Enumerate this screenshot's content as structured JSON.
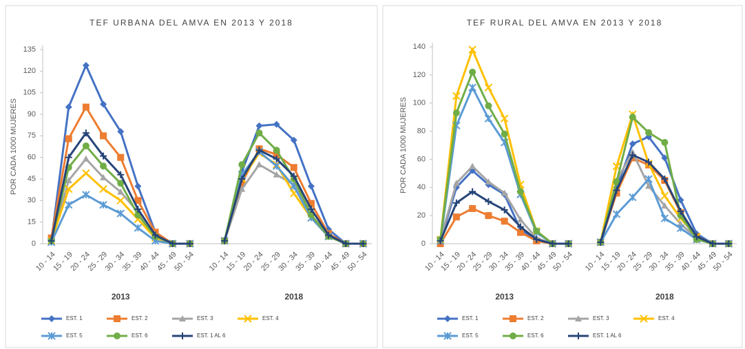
{
  "chart_data": [
    {
      "type": "line",
      "title": "TEF URBANA DEL AMVA EN 2013 Y 2018",
      "y_label": "POR CADA 1000 MUJERES",
      "categories": [
        "10 - 14",
        "15 - 19",
        "20 - 24",
        "25 - 29",
        "30 - 34",
        "35 - 39",
        "40 - 44",
        "45 - 49",
        "50 - 54",
        null,
        "10 - 14",
        "15 - 19",
        "20 - 24",
        "25 - 29",
        "30 - 34",
        "35 - 39",
        "40 - 44",
        "45 - 49",
        "50 - 54"
      ],
      "group_labels": [
        "2013",
        "2018"
      ],
      "ylim": [
        0,
        135
      ],
      "yticks": [
        0,
        15,
        30,
        45,
        60,
        75,
        90,
        105,
        120,
        135
      ],
      "series": [
        {
          "name": "EST. 1",
          "color": "#4472c4",
          "marker": "diamond",
          "values": [
            2,
            95,
            124,
            97,
            78,
            40,
            8,
            0,
            0,
            null,
            2,
            50,
            82,
            83,
            72,
            40,
            10,
            0,
            0
          ]
        },
        {
          "name": "EST. 2",
          "color": "#ed7d31",
          "marker": "square",
          "values": [
            4,
            73,
            95,
            75,
            60,
            30,
            8,
            0,
            0,
            null,
            2,
            42,
            66,
            62,
            53,
            28,
            7,
            0,
            0
          ]
        },
        {
          "name": "EST. 3",
          "color": "#a5a5a5",
          "marker": "triangle",
          "values": [
            2,
            44,
            59,
            46,
            36,
            22,
            5,
            0,
            0,
            null,
            2,
            38,
            55,
            48,
            41,
            20,
            5,
            0,
            0
          ]
        },
        {
          "name": "EST. 4",
          "color": "#ffc000",
          "marker": "x",
          "values": [
            2,
            38,
            49,
            38,
            30,
            17,
            4,
            0,
            0,
            null,
            2,
            45,
            63,
            55,
            35,
            18,
            5,
            0,
            0
          ]
        },
        {
          "name": "EST. 5",
          "color": "#5b9bd5",
          "marker": "star",
          "values": [
            1,
            27,
            34,
            27,
            21,
            11,
            2,
            0,
            0,
            null,
            2,
            48,
            64,
            54,
            40,
            18,
            5,
            0,
            0
          ]
        },
        {
          "name": "EST. 6",
          "color": "#70ad47",
          "marker": "circle",
          "values": [
            2,
            53,
            68,
            54,
            42,
            20,
            5,
            0,
            0,
            null,
            2,
            55,
            77,
            65,
            45,
            20,
            5,
            0,
            0
          ]
        },
        {
          "name": "EST. 1 AL 6",
          "color": "#264478",
          "marker": "plus",
          "values": [
            2,
            60,
            77,
            61,
            48,
            24,
            6,
            0,
            0,
            null,
            2,
            45,
            65,
            59,
            47,
            24,
            6,
            0,
            0
          ]
        }
      ]
    },
    {
      "type": "line",
      "title": "TEF RURAL DEL AMVA EN 2013 Y 2018",
      "y_label": "POR CADA 1000 MUJERES",
      "categories": [
        "10 - 14",
        "15 - 19",
        "20 - 24",
        "25 - 29",
        "30 - 34",
        "35 - 39",
        "40 - 44",
        "45 - 49",
        "50 - 54",
        null,
        "10 - 14",
        "15 - 19",
        "20 - 24",
        "25 - 29",
        "30 - 34",
        "35 - 39",
        "40 - 44",
        "45 - 49",
        "50 - 54"
      ],
      "group_labels": [
        "2013",
        "2018"
      ],
      "ylim": [
        0,
        140
      ],
      "yticks": [
        0,
        20,
        40,
        60,
        80,
        100,
        120,
        140
      ],
      "series": [
        {
          "name": "EST. 1",
          "color": "#4472c4",
          "marker": "diamond",
          "values": [
            2,
            40,
            52,
            42,
            35,
            10,
            3,
            0,
            0,
            null,
            1,
            40,
            71,
            76,
            61,
            31,
            7,
            0,
            0
          ]
        },
        {
          "name": "EST. 2",
          "color": "#ed7d31",
          "marker": "square",
          "values": [
            0,
            19,
            25,
            20,
            16,
            8,
            2,
            0,
            0,
            null,
            1,
            36,
            61,
            56,
            45,
            22,
            5,
            0,
            0
          ]
        },
        {
          "name": "EST. 3",
          "color": "#a5a5a5",
          "marker": "triangle",
          "values": [
            3,
            43,
            55,
            44,
            36,
            17,
            4,
            0,
            0,
            null,
            1,
            45,
            65,
            41,
            27,
            14,
            4,
            0,
            0
          ]
        },
        {
          "name": "EST. 4",
          "color": "#ffc000",
          "marker": "x",
          "values": [
            3,
            105,
            138,
            111,
            89,
            42,
            9,
            0,
            0,
            null,
            1,
            55,
            92,
            57,
            34,
            18,
            5,
            0,
            0
          ]
        },
        {
          "name": "EST. 5",
          "color": "#5b9bd5",
          "marker": "star",
          "values": [
            2,
            84,
            111,
            89,
            72,
            35,
            8,
            0,
            0,
            null,
            1,
            21,
            33,
            46,
            18,
            11,
            3,
            0,
            0
          ]
        },
        {
          "name": "EST. 6",
          "color": "#70ad47",
          "marker": "circle",
          "values": [
            3,
            93,
            122,
            98,
            78,
            37,
            9,
            0,
            0,
            null,
            1,
            44,
            90,
            79,
            72,
            20,
            3,
            0,
            0
          ]
        },
        {
          "name": "EST. 1 AL 6",
          "color": "#264478",
          "marker": "plus",
          "values": [
            2,
            29,
            37,
            30,
            24,
            12,
            3,
            0,
            0,
            null,
            1,
            38,
            63,
            58,
            46,
            23,
            5,
            0,
            0
          ]
        }
      ]
    }
  ]
}
